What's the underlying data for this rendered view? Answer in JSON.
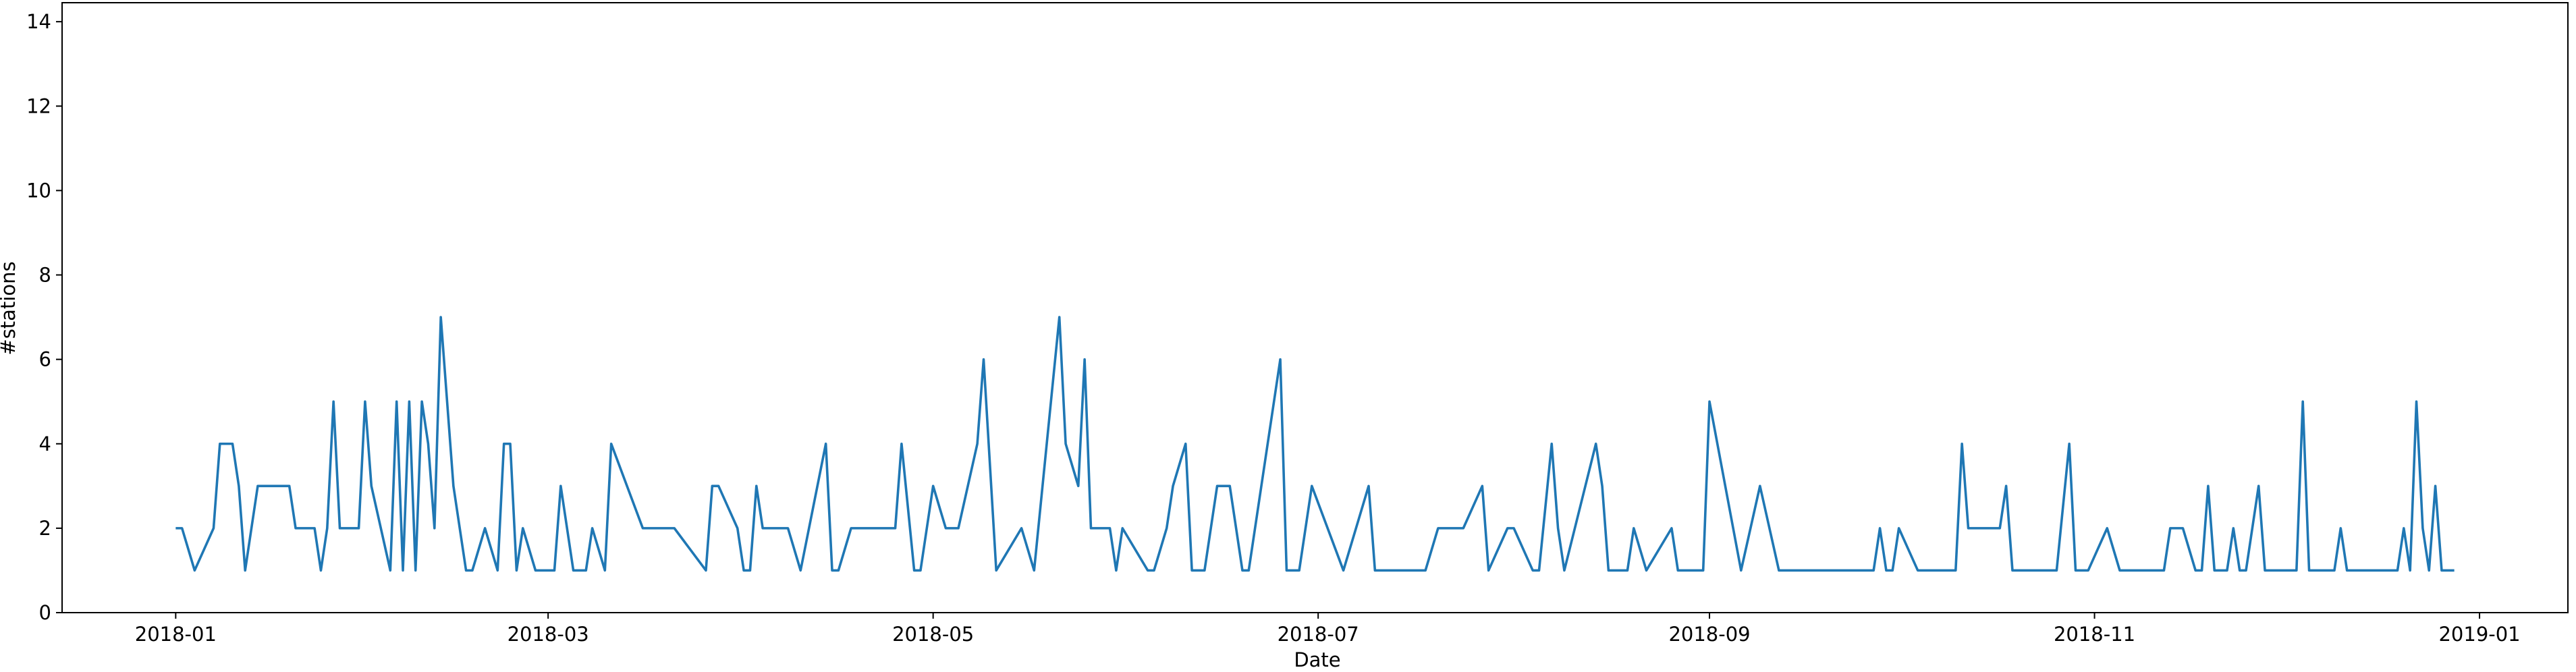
{
  "chart_data": {
    "type": "line",
    "xlabel": "Date",
    "ylabel": "#stations",
    "x": [
      0,
      1,
      3,
      6,
      7,
      9,
      10,
      11,
      13,
      18,
      19,
      22,
      23,
      24,
      25,
      26,
      29,
      30,
      31,
      34,
      35,
      36,
      37,
      38,
      39,
      40,
      41,
      42,
      44,
      46,
      47,
      49,
      51,
      52,
      53,
      54,
      55,
      57,
      60,
      61,
      63,
      65,
      66,
      68,
      69,
      74,
      79,
      84,
      85,
      86,
      89,
      90,
      91,
      92,
      93,
      97,
      99,
      103,
      104,
      105,
      107,
      114,
      115,
      117,
      118,
      120,
      122,
      124,
      127,
      128,
      130,
      134,
      136,
      140,
      141,
      143,
      144,
      145,
      148,
      149,
      150,
      154,
      155,
      157,
      158,
      160,
      161,
      163,
      165,
      167,
      169,
      170,
      175,
      176,
      178,
      180,
      185,
      189,
      190,
      198,
      200,
      204,
      207,
      208,
      211,
      212,
      215,
      216,
      218,
      219,
      220,
      225,
      226,
      227,
      230,
      231,
      233,
      237,
      238,
      242,
      243,
      248,
      251,
      254,
      269,
      270,
      271,
      272,
      273,
      276,
      282,
      283,
      284,
      289,
      290,
      291,
      298,
      300,
      301,
      303,
      306,
      308,
      315,
      316,
      318,
      320,
      321,
      322,
      323,
      325,
      326,
      327,
      328,
      330,
      331,
      336,
      337,
      338,
      342,
      343,
      344,
      352,
      353,
      354,
      355,
      356,
      357,
      358,
      359,
      361
    ],
    "series": [
      {
        "name": "#stations",
        "color": "#1f77b4",
        "values": [
          2,
          2,
          1,
          2,
          4,
          4,
          3,
          1,
          3,
          3,
          2,
          2,
          1,
          2,
          5,
          2,
          2,
          5,
          3,
          1,
          5,
          1,
          5,
          1,
          5,
          4,
          2,
          7,
          3,
          1,
          1,
          2,
          1,
          4,
          4,
          1,
          2,
          1,
          1,
          3,
          1,
          1,
          2,
          1,
          4,
          2,
          2,
          1,
          3,
          3,
          2,
          1,
          1,
          3,
          2,
          2,
          1,
          4,
          1,
          1,
          2,
          2,
          4,
          1,
          1,
          3,
          2,
          2,
          4,
          6,
          1,
          2,
          1,
          7,
          4,
          3,
          6,
          2,
          2,
          1,
          2,
          1,
          1,
          2,
          3,
          4,
          1,
          1,
          3,
          3,
          1,
          1,
          6,
          1,
          1,
          3,
          1,
          3,
          1,
          1,
          2,
          2,
          3,
          1,
          2,
          2,
          1,
          1,
          4,
          2,
          1,
          4,
          3,
          1,
          1,
          2,
          1,
          2,
          1,
          1,
          5,
          1,
          3,
          1,
          1,
          2,
          1,
          1,
          2,
          1,
          1,
          4,
          2,
          2,
          3,
          1,
          1,
          4,
          1,
          1,
          2,
          1,
          1,
          2,
          2,
          1,
          1,
          3,
          1,
          1,
          2,
          1,
          1,
          3,
          1,
          1,
          5,
          1,
          1,
          2,
          1,
          1,
          2,
          1,
          5,
          2,
          1,
          3,
          1,
          1
        ]
      }
    ],
    "xlim": [
      -18,
      379
    ],
    "xticks": [
      {
        "value": 0,
        "label": "2018-01"
      },
      {
        "value": 59,
        "label": "2018-03"
      },
      {
        "value": 120,
        "label": "2018-05"
      },
      {
        "value": 181,
        "label": "2018-07"
      },
      {
        "value": 243,
        "label": "2018-09"
      },
      {
        "value": 304,
        "label": "2018-11"
      },
      {
        "value": 365,
        "label": "2019-01"
      }
    ],
    "ylim": [
      0,
      14.45
    ],
    "yticks": [
      0,
      2,
      4,
      6,
      8,
      10,
      12,
      14
    ],
    "grid": false
  }
}
